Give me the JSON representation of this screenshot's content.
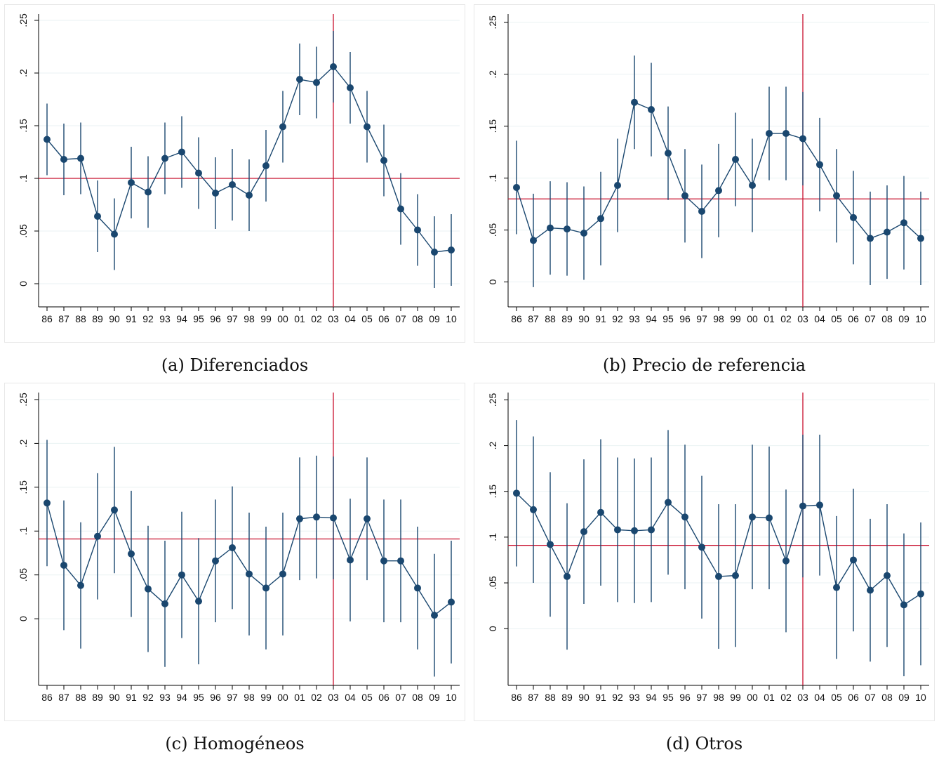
{
  "colors": {
    "series": "#1a476f",
    "ref": "#c8102e",
    "grid": "#eaf2f3",
    "axis": "#000000"
  },
  "chart_data": [
    {
      "type": "line",
      "caption": "(a) Diferenciados",
      "x": [
        "86",
        "87",
        "88",
        "89",
        "90",
        "91",
        "92",
        "93",
        "94",
        "95",
        "96",
        "97",
        "98",
        "99",
        "00",
        "01",
        "02",
        "03",
        "04",
        "05",
        "06",
        "07",
        "08",
        "09",
        "10"
      ],
      "y": [
        0.137,
        0.118,
        0.119,
        0.064,
        0.047,
        0.096,
        0.087,
        0.119,
        0.125,
        0.105,
        0.086,
        0.094,
        0.084,
        0.112,
        0.149,
        0.194,
        0.191,
        0.206,
        0.186,
        0.149,
        0.117,
        0.071,
        0.051,
        0.03,
        0.032
      ],
      "lo": [
        0.103,
        0.084,
        0.085,
        0.03,
        0.013,
        0.062,
        0.053,
        0.085,
        0.091,
        0.071,
        0.052,
        0.06,
        0.05,
        0.078,
        0.115,
        0.16,
        0.157,
        0.172,
        0.152,
        0.115,
        0.083,
        0.037,
        0.017,
        -0.004,
        -0.002
      ],
      "hi": [
        0.171,
        0.152,
        0.153,
        0.098,
        0.081,
        0.13,
        0.121,
        0.153,
        0.159,
        0.139,
        0.12,
        0.128,
        0.118,
        0.146,
        0.183,
        0.228,
        0.225,
        0.24,
        0.22,
        0.183,
        0.151,
        0.105,
        0.085,
        0.064,
        0.066
      ],
      "yticks": [
        0,
        0.05,
        0.1,
        0.15,
        0.2,
        0.25
      ],
      "ytick_labels": [
        "0",
        ".05",
        ".1",
        ".15",
        ".2",
        ".25"
      ],
      "ylim": [
        -0.022,
        0.256
      ],
      "hline": 0.1,
      "vline": "03"
    },
    {
      "type": "line",
      "caption": "(b) Precio de referencia",
      "x": [
        "86",
        "87",
        "88",
        "89",
        "90",
        "91",
        "92",
        "93",
        "94",
        "95",
        "96",
        "97",
        "98",
        "99",
        "00",
        "01",
        "02",
        "03",
        "04",
        "05",
        "06",
        "07",
        "08",
        "09",
        "10"
      ],
      "y": [
        0.091,
        0.04,
        0.052,
        0.051,
        0.047,
        0.061,
        0.093,
        0.173,
        0.166,
        0.124,
        0.083,
        0.068,
        0.088,
        0.118,
        0.093,
        0.143,
        0.143,
        0.138,
        0.113,
        0.083,
        0.062,
        0.042,
        0.048,
        0.057,
        0.042
      ],
      "lo": [
        0.046,
        -0.005,
        0.007,
        0.006,
        0.002,
        0.016,
        0.048,
        0.128,
        0.121,
        0.079,
        0.038,
        0.023,
        0.043,
        0.073,
        0.048,
        0.098,
        0.098,
        0.093,
        0.068,
        0.038,
        0.017,
        -0.003,
        0.003,
        0.012,
        -0.003
      ],
      "hi": [
        0.136,
        0.085,
        0.097,
        0.096,
        0.092,
        0.106,
        0.138,
        0.218,
        0.211,
        0.169,
        0.128,
        0.113,
        0.133,
        0.163,
        0.138,
        0.188,
        0.188,
        0.183,
        0.158,
        0.128,
        0.107,
        0.087,
        0.093,
        0.102,
        0.087
      ],
      "yticks": [
        0,
        0.05,
        0.1,
        0.15,
        0.2,
        0.25
      ],
      "ytick_labels": [
        "0",
        ".05",
        ".1",
        ".15",
        ".2",
        ".25"
      ],
      "ylim": [
        -0.024,
        0.258
      ],
      "hline": 0.08,
      "vline": "03"
    },
    {
      "type": "line",
      "caption": "(c) Homogéneos",
      "x": [
        "86",
        "87",
        "88",
        "89",
        "90",
        "91",
        "92",
        "93",
        "94",
        "95",
        "96",
        "97",
        "98",
        "99",
        "00",
        "01",
        "02",
        "03",
        "04",
        "05",
        "06",
        "07",
        "08",
        "09",
        "10"
      ],
      "y": [
        0.132,
        0.061,
        0.038,
        0.094,
        0.124,
        0.074,
        0.034,
        0.017,
        0.05,
        0.02,
        0.066,
        0.081,
        0.051,
        0.035,
        0.051,
        0.114,
        0.116,
        0.115,
        0.067,
        0.114,
        0.066,
        0.066,
        0.035,
        0.004,
        0.019
      ],
      "lo": [
        0.06,
        -0.013,
        -0.034,
        0.022,
        0.052,
        0.002,
        -0.038,
        -0.055,
        -0.022,
        -0.052,
        -0.004,
        0.011,
        -0.019,
        -0.035,
        -0.019,
        0.044,
        0.046,
        0.045,
        -0.003,
        0.044,
        -0.004,
        -0.004,
        -0.035,
        -0.066,
        -0.051
      ],
      "hi": [
        0.204,
        0.135,
        0.11,
        0.166,
        0.196,
        0.146,
        0.106,
        0.089,
        0.122,
        0.092,
        0.136,
        0.151,
        0.121,
        0.105,
        0.121,
        0.184,
        0.186,
        0.185,
        0.137,
        0.184,
        0.136,
        0.136,
        0.105,
        0.074,
        0.089
      ],
      "yticks": [
        0,
        0.05,
        0.1,
        0.15,
        0.2,
        0.25
      ],
      "ytick_labels": [
        "0",
        ".05",
        ".1",
        ".15",
        ".2",
        ".25"
      ],
      "ylim": [
        -0.076,
        0.258
      ],
      "hline": 0.091,
      "vline": "03"
    },
    {
      "type": "line",
      "caption": "(d) Otros",
      "x": [
        "86",
        "87",
        "88",
        "89",
        "90",
        "91",
        "92",
        "93",
        "94",
        "95",
        "96",
        "97",
        "98",
        "99",
        "00",
        "01",
        "02",
        "03",
        "04",
        "05",
        "06",
        "07",
        "08",
        "09",
        "10"
      ],
      "y": [
        0.148,
        0.13,
        0.092,
        0.057,
        0.106,
        0.127,
        0.108,
        0.107,
        0.108,
        0.138,
        0.122,
        0.089,
        0.057,
        0.058,
        0.122,
        0.121,
        0.074,
        0.134,
        0.135,
        0.045,
        0.075,
        0.042,
        0.058,
        0.026,
        0.038
      ],
      "lo": [
        0.068,
        0.05,
        0.013,
        -0.023,
        0.027,
        0.047,
        0.029,
        0.028,
        0.029,
        0.059,
        0.043,
        0.011,
        -0.022,
        -0.02,
        0.043,
        0.043,
        -0.004,
        0.056,
        0.058,
        -0.033,
        -0.003,
        -0.036,
        -0.02,
        -0.052,
        -0.04
      ],
      "hi": [
        0.228,
        0.21,
        0.171,
        0.137,
        0.185,
        0.207,
        0.187,
        0.186,
        0.187,
        0.217,
        0.201,
        0.167,
        0.136,
        0.136,
        0.201,
        0.199,
        0.152,
        0.212,
        0.212,
        0.123,
        0.153,
        0.12,
        0.136,
        0.104,
        0.116
      ],
      "yticks": [
        0,
        0.05,
        0.1,
        0.15,
        0.2,
        0.25
      ],
      "ytick_labels": [
        "0",
        ".05",
        ".1",
        ".15",
        ".2",
        ".25"
      ],
      "ylim": [
        -0.062,
        0.258
      ],
      "hline": 0.091,
      "vline": "03"
    }
  ]
}
